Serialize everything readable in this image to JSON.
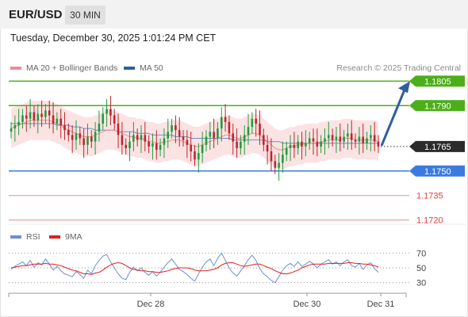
{
  "header": {
    "symbol": "EUR/USD",
    "timeframe": "30 MIN"
  },
  "timestamp": "Tuesday, December 30, 2025 1:01:24 PM CET",
  "legend": {
    "ma20_label": "MA 20 + Bollinger Bands",
    "ma50_label": "MA 50",
    "ma20_color": "#f08c8c",
    "ma50_color": "#2e5f9e"
  },
  "copyright": "Research © 2025 Trading Central",
  "rsi_legend": {
    "rsi_label": "RSI",
    "ma_label": "9MA",
    "rsi_color": "#6b8fd6",
    "ma_color": "#e02020"
  },
  "chart_data": {
    "type": "candlestick",
    "x_ticks": [
      "Dec 28",
      "Dec 30",
      "Dec 31"
    ],
    "y_range": [
      1.17,
      1.182
    ],
    "current_price": "1.1765",
    "levels": [
      {
        "value": 1.1805,
        "label": "1.1805",
        "kind": "target",
        "color": "#4caf1a"
      },
      {
        "value": 1.179,
        "label": "1.1790",
        "kind": "resistance",
        "color": "#4caf1a"
      },
      {
        "value": 1.175,
        "label": "1.1750",
        "kind": "pivot",
        "color": "#3a7be0"
      },
      {
        "value": 1.1735,
        "label": "1.1735",
        "kind": "support",
        "color": "#f08c8c"
      },
      {
        "value": 1.172,
        "label": "1.1720",
        "kind": "support",
        "color": "#f08c8c"
      }
    ],
    "closes": [
      1.1776,
      1.1778,
      1.178,
      1.1784,
      1.1782,
      1.1786,
      1.1781,
      1.1785,
      1.1783,
      1.1787,
      1.1784,
      1.1779,
      1.1782,
      1.1778,
      1.1775,
      1.1772,
      1.1769,
      1.1773,
      1.177,
      1.1766,
      1.1771,
      1.1768,
      1.1774,
      1.1779,
      1.1785,
      1.1788,
      1.1784,
      1.1779,
      1.1772,
      1.1766,
      1.1764,
      1.1768,
      1.1772,
      1.1769,
      1.1772,
      1.1768,
      1.1765,
      1.1767,
      1.1763,
      1.1766,
      1.177,
      1.1774,
      1.1778,
      1.1775,
      1.1771,
      1.1769,
      1.1766,
      1.1762,
      1.1757,
      1.1761,
      1.1766,
      1.1771,
      1.1774,
      1.177,
      1.1776,
      1.1783,
      1.178,
      1.1773,
      1.1768,
      1.1764,
      1.1768,
      1.1772,
      1.1777,
      1.1782,
      1.1779,
      1.1772,
      1.1766,
      1.1762,
      1.1756,
      1.1752,
      1.1755,
      1.176,
      1.1764,
      1.1766,
      1.1764,
      1.1768,
      1.1765,
      1.1767,
      1.177,
      1.1768,
      1.1765,
      1.1768,
      1.177,
      1.1772,
      1.1769,
      1.1771,
      1.1768,
      1.1771,
      1.1773,
      1.1769,
      1.1768,
      1.1771,
      1.1767,
      1.177,
      1.1772,
      1.1768,
      1.1765
    ],
    "ma20": [
      1.1776,
      1.1777,
      1.1778,
      1.1779,
      1.178,
      1.1781,
      1.1781,
      1.1781,
      1.1781,
      1.1781,
      1.1781,
      1.178,
      1.1779,
      1.1778,
      1.1776,
      1.1775,
      1.1774,
      1.1773,
      1.1772,
      1.1771,
      1.1771,
      1.1771,
      1.1772,
      1.1773,
      1.1774,
      1.1775,
      1.1775,
      1.1775,
      1.1774,
      1.1773,
      1.1772,
      1.1771,
      1.1771,
      1.177,
      1.177,
      1.1769,
      1.1768,
      1.1768,
      1.1767,
      1.1767,
      1.1768,
      1.1768,
      1.1769,
      1.1769,
      1.1769,
      1.1768,
      1.1767,
      1.1766,
      1.1765,
      1.1765,
      1.1766,
      1.1767,
      1.1768,
      1.1769,
      1.177,
      1.1771,
      1.1772,
      1.1772,
      1.1771,
      1.177,
      1.177,
      1.1771,
      1.1772,
      1.1773,
      1.1773,
      1.1772,
      1.177,
      1.1768,
      1.1766,
      1.1764,
      1.1763,
      1.1763,
      1.1764,
      1.1765,
      1.1765,
      1.1766,
      1.1766,
      1.1767,
      1.1767,
      1.1767,
      1.1767,
      1.1768,
      1.1768,
      1.1769,
      1.1769,
      1.1769,
      1.1769,
      1.177,
      1.177,
      1.177,
      1.1769,
      1.1769,
      1.1769,
      1.1769,
      1.1769,
      1.1769,
      1.1768
    ],
    "ma50": [
      1.1779,
      1.1779,
      1.1779,
      1.1779,
      1.1779,
      1.1779,
      1.1779,
      1.1779,
      1.1779,
      1.1779,
      1.1779,
      1.1779,
      1.1778,
      1.1778,
      1.1778,
      1.1778,
      1.1777,
      1.1777,
      1.1777,
      1.1776,
      1.1776,
      1.1776,
      1.1775,
      1.1775,
      1.1775,
      1.1775,
      1.1775,
      1.1775,
      1.1774,
      1.1774,
      1.1774,
      1.1774,
      1.1774,
      1.1773,
      1.1773,
      1.1773,
      1.1773,
      1.1772,
      1.1772,
      1.1772,
      1.1772,
      1.1772,
      1.1772,
      1.1771,
      1.1771,
      1.1771,
      1.1771,
      1.177,
      1.177,
      1.177,
      1.177,
      1.177,
      1.177,
      1.177,
      1.177,
      1.177,
      1.177,
      1.177,
      1.1769,
      1.1769,
      1.1769,
      1.1769,
      1.1769,
      1.1769,
      1.1769,
      1.1769,
      1.1769,
      1.1768,
      1.1768,
      1.1768,
      1.1768,
      1.1767,
      1.1767,
      1.1767,
      1.1767,
      1.1767,
      1.1767,
      1.1767,
      1.1767,
      1.1767,
      1.1767,
      1.1767,
      1.1767,
      1.1767,
      1.1767,
      1.1767,
      1.1767,
      1.1767,
      1.1767,
      1.1767,
      1.1767,
      1.1767,
      1.1767,
      1.1767,
      1.1767,
      1.1767,
      1.1767
    ],
    "rsi": {
      "levels": [
        70,
        50,
        30
      ],
      "range": [
        20,
        80
      ],
      "values": [
        48,
        52,
        55,
        58,
        53,
        60,
        51,
        57,
        54,
        62,
        55,
        47,
        52,
        46,
        42,
        40,
        38,
        45,
        41,
        36,
        47,
        42,
        53,
        60,
        66,
        68,
        58,
        50,
        42,
        36,
        34,
        44,
        51,
        46,
        50,
        44,
        40,
        45,
        39,
        44,
        51,
        57,
        62,
        55,
        48,
        45,
        41,
        36,
        32,
        42,
        51,
        58,
        62,
        53,
        63,
        70,
        60,
        50,
        43,
        39,
        46,
        53,
        61,
        67,
        60,
        49,
        42,
        38,
        33,
        30,
        38,
        47,
        53,
        56,
        52,
        58,
        52,
        55,
        59,
        55,
        50,
        55,
        58,
        61,
        55,
        58,
        53,
        58,
        61,
        53,
        51,
        56,
        48,
        54,
        57,
        49,
        44
      ],
      "ma9": [
        50,
        51,
        52,
        53,
        53,
        54,
        55,
        55,
        55,
        56,
        55,
        55,
        54,
        53,
        51,
        49,
        47,
        46,
        44,
        42,
        42,
        41,
        43,
        44,
        47,
        51,
        54,
        56,
        57,
        56,
        53,
        50,
        48,
        47,
        46,
        46,
        45,
        45,
        44,
        44,
        45,
        46,
        48,
        49,
        50,
        50,
        50,
        49,
        47,
        46,
        46,
        46,
        47,
        48,
        50,
        54,
        56,
        57,
        57,
        55,
        53,
        52,
        53,
        54,
        55,
        55,
        53,
        51,
        49,
        46,
        44,
        42,
        42,
        43,
        45,
        47,
        50,
        52,
        54,
        55,
        55,
        55,
        55,
        56,
        56,
        56,
        56,
        56,
        57,
        57,
        56,
        56,
        55,
        55,
        54,
        53,
        51
      ]
    }
  }
}
